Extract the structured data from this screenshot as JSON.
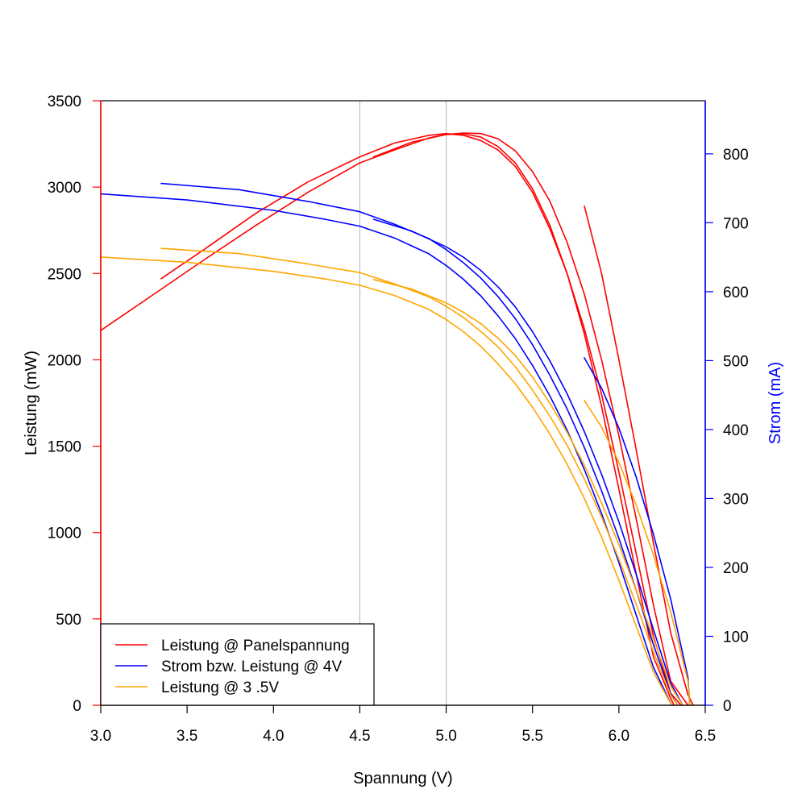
{
  "chart_data": {
    "type": "line",
    "xlabel": "Spannung (V)",
    "ylabel_left": "Leistung (mW)",
    "ylabel_right": "Strom (mA)",
    "xlim": [
      3.0,
      6.5
    ],
    "ylim_left": [
      0,
      3500
    ],
    "ylim_right": [
      0,
      877
    ],
    "x_ticks": [
      "3.0",
      "3.5",
      "4.0",
      "4.5",
      "5.0",
      "5.5",
      "6.0",
      "6.5"
    ],
    "y_left_ticks": [
      "0",
      "500",
      "1000",
      "1500",
      "2000",
      "2500",
      "3000",
      "3500"
    ],
    "y_right_ticks": [
      "0",
      "100",
      "200",
      "300",
      "400",
      "500",
      "600",
      "700",
      "800"
    ],
    "vertical_gridlines_x": [
      4.5,
      5.0
    ],
    "legend_position": "bottom-left",
    "colors": {
      "power_panel": "#ff0000",
      "current": "#0000ff",
      "power_35": "#ffa500",
      "right_axis": "#0000ff",
      "left_axis": "#ff0000",
      "gridline": "#bebebe"
    },
    "series": [
      {
        "name": "Leistung @ Panelspannung",
        "color": "#ff0000",
        "curves": [
          {
            "x": [
              3.0,
              3.3,
              3.6,
              3.9,
              4.2,
              4.5,
              4.7,
              4.9,
              5.0,
              5.1,
              5.2,
              5.3,
              5.4,
              5.5,
              5.6,
              5.7,
              5.8,
              5.9,
              6.0,
              6.1,
              6.2,
              6.3,
              6.32
            ],
            "y": [
              2170,
              2375,
              2580,
              2780,
              2970,
              3140,
              3215,
              3285,
              3305,
              3308,
              3290,
              3235,
              3140,
              2990,
              2780,
              2500,
              2150,
              1730,
              1250,
              760,
              280,
              40,
              0
            ]
          },
          {
            "x": [
              3.35,
              3.6,
              3.9,
              4.2,
              4.5,
              4.7,
              4.9,
              5.0,
              5.1,
              5.2,
              5.3,
              5.4,
              5.5,
              5.6,
              5.7,
              5.8,
              5.9,
              6.0,
              6.1,
              6.2,
              6.3,
              6.36
            ],
            "y": [
              2470,
              2640,
              2850,
              3030,
              3175,
              3255,
              3300,
              3310,
              3300,
              3270,
              3215,
              3120,
              2970,
              2760,
              2500,
              2180,
              1800,
              1350,
              880,
              400,
              70,
              0
            ]
          },
          {
            "x": [
              4.58,
              4.8,
              5.0,
              5.1,
              5.2,
              5.3,
              5.4,
              5.5,
              5.6,
              5.7,
              5.8,
              5.9,
              6.0,
              6.1,
              6.2,
              6.3,
              6.4
            ],
            "y": [
              3175,
              3260,
              3305,
              3313,
              3310,
              3280,
              3210,
              3090,
              2920,
              2680,
              2380,
              2000,
              1560,
              1080,
              580,
              140,
              0
            ]
          },
          {
            "x": [
              5.8,
              5.9,
              6.0,
              6.1,
              6.2,
              6.3,
              6.4,
              6.43
            ],
            "y": [
              2890,
              2500,
              2000,
              1480,
              940,
              420,
              60,
              0
            ]
          }
        ]
      },
      {
        "name": "Strom bzw. Leistung @ 4V",
        "color": "#0000ff",
        "curves": [
          {
            "x": [
              3.0,
              3.5,
              4.0,
              4.3,
              4.5,
              4.7,
              4.9,
              5.0,
              5.1,
              5.2,
              5.3,
              5.4,
              5.5,
              5.6,
              5.7,
              5.8,
              5.9,
              6.0,
              6.1,
              6.2,
              6.3,
              6.31
            ],
            "y": [
              742,
              733,
              718,
              705,
              695,
              678,
              655,
              638,
              618,
              594,
              565,
              532,
              493,
              449,
              399,
              342,
              278,
              207,
              131,
              55,
              3,
              0
            ]
          },
          {
            "x": [
              3.35,
              3.8,
              4.2,
              4.5,
              4.7,
              4.9,
              5.0,
              5.1,
              5.2,
              5.3,
              5.4,
              5.5,
              5.6,
              5.7,
              5.8,
              5.9,
              6.0,
              6.1,
              6.2,
              6.3,
              6.34
            ],
            "y": [
              757,
              748,
              731,
              716,
              698,
              677,
              661,
              642,
              620,
              593,
              561,
              523,
              479,
              430,
              374,
              311,
              242,
              167,
              88,
              17,
              0
            ]
          },
          {
            "x": [
              4.58,
              4.8,
              5.0,
              5.1,
              5.2,
              5.3,
              5.4,
              5.5,
              5.6,
              5.7,
              5.8,
              5.9,
              6.0,
              6.1,
              6.2,
              6.3,
              6.37
            ],
            "y": [
              705,
              688,
              665,
              650,
              631,
              607,
              578,
              542,
              500,
              452,
              397,
              335,
              266,
              190,
              110,
              32,
              0
            ]
          },
          {
            "x": [
              5.8,
              5.9,
              6.0,
              6.1,
              6.2,
              6.3,
              6.4,
              6.41
            ],
            "y": [
              504,
              460,
              402,
              331,
              248,
              154,
              40,
              0
            ]
          }
        ]
      },
      {
        "name": "Leistung @ 3 .5V",
        "color": "#ffa500",
        "curves": [
          {
            "x": [
              3.0,
              3.5,
              4.0,
              4.3,
              4.5,
              4.7,
              4.9,
              5.0,
              5.1,
              5.2,
              5.3,
              5.4,
              5.5,
              5.6,
              5.7,
              5.8,
              5.9,
              6.0,
              6.1,
              6.2,
              6.3,
              6.31
            ],
            "y": [
              2595,
              2565,
              2512,
              2468,
              2432,
              2373,
              2292,
              2233,
              2163,
              2079,
              1977,
              1862,
              1725,
              1571,
              1396,
              1197,
              973,
              724,
              458,
              192,
              11,
              0
            ]
          },
          {
            "x": [
              3.35,
              3.8,
              4.2,
              4.5,
              4.7,
              4.9,
              5.0,
              5.1,
              5.2,
              5.3,
              5.4,
              5.5,
              5.6,
              5.7,
              5.8,
              5.9,
              6.0,
              6.1,
              6.2,
              6.3,
              6.34
            ],
            "y": [
              2645,
              2615,
              2555,
              2505,
              2440,
              2365,
              2310,
              2245,
              2165,
              2075,
              1960,
              1825,
              1675,
              1505,
              1310,
              1090,
              845,
              585,
              310,
              60,
              0
            ]
          },
          {
            "x": [
              4.58,
              4.8,
              5.0,
              5.1,
              5.2,
              5.3,
              5.4,
              5.5,
              5.6,
              5.7,
              5.8,
              5.9,
              6.0,
              6.1,
              6.2,
              6.3,
              6.37
            ],
            "y": [
              2465,
              2410,
              2330,
              2275,
              2210,
              2125,
              2025,
              1900,
              1750,
              1580,
              1390,
              1170,
              930,
              665,
              385,
              110,
              0
            ]
          },
          {
            "x": [
              5.8,
              5.9,
              6.0,
              6.1,
              6.2,
              6.3,
              6.4,
              6.41
            ],
            "y": [
              1765,
              1610,
              1405,
              1160,
              870,
              540,
              140,
              0
            ]
          }
        ]
      }
    ]
  }
}
